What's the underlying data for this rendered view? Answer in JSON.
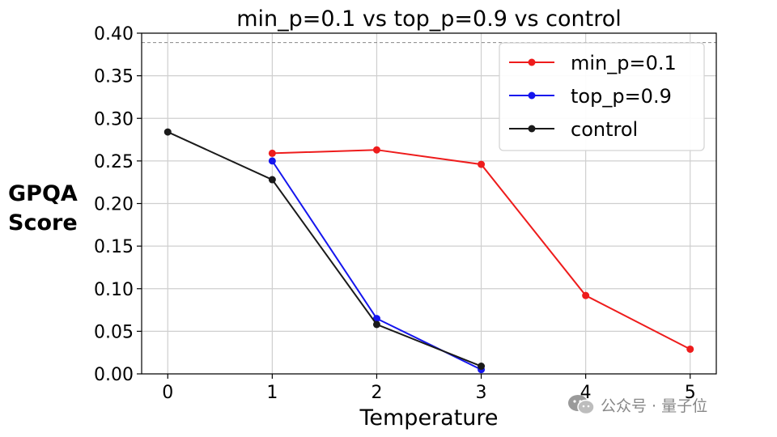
{
  "chart_data": {
    "type": "line",
    "title": "min_p=0.1 vs top_p=0.9 vs control",
    "xlabel": "Temperature",
    "ylabel_lines": [
      "GPQA",
      "Score"
    ],
    "xlim": [
      -0.25,
      5.25
    ],
    "ylim": [
      0,
      0.4
    ],
    "xticks": [
      0,
      1,
      2,
      3,
      4,
      5
    ],
    "yticks": [
      "0.00",
      "0.05",
      "0.10",
      "0.15",
      "0.20",
      "0.25",
      "0.30",
      "0.35",
      "0.40"
    ],
    "grid": true,
    "legend_position": "top-right",
    "reference_line": 0.389,
    "series": [
      {
        "name": "min_p=0.1",
        "color": "#ee1c1c",
        "x": [
          1,
          2,
          3,
          4,
          5
        ],
        "y": [
          0.259,
          0.263,
          0.246,
          0.092,
          0.029
        ]
      },
      {
        "name": "top_p=0.9",
        "color": "#1515ee",
        "x": [
          1,
          2,
          3
        ],
        "y": [
          0.25,
          0.065,
          0.005
        ]
      },
      {
        "name": "control",
        "color": "#1a1a1a",
        "x": [
          0,
          1,
          2,
          3
        ],
        "y": [
          0.284,
          0.228,
          0.058,
          0.009
        ]
      }
    ]
  },
  "watermark": {
    "text": "公众号 · 量子位",
    "icon": "wechat-icon"
  }
}
